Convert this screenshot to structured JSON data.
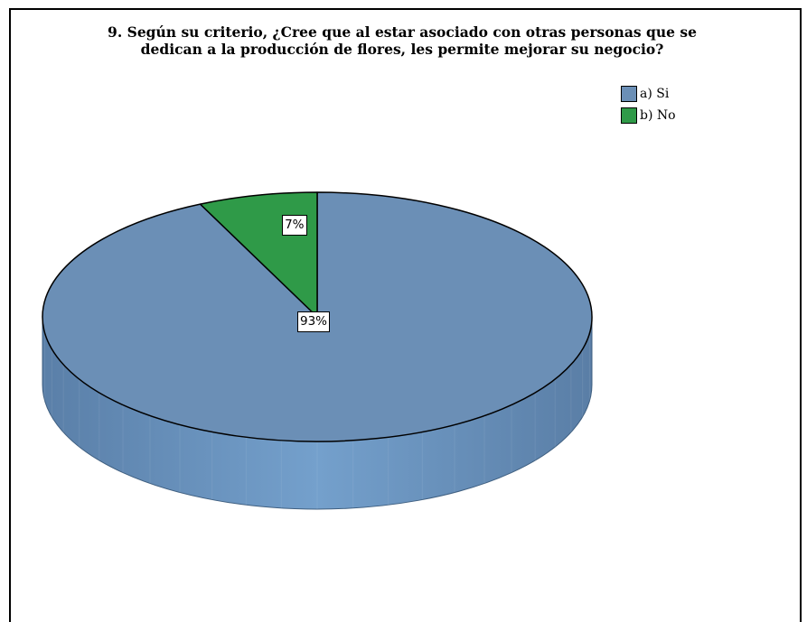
{
  "chart_data": {
    "type": "pie",
    "title_lines": [
      "9. Según su criterio, ¿Cree que al estar asociado con otras personas que se",
      "dedican a la producción de flores, les permite mejorar  su negocio?"
    ],
    "categories": [
      "a) Si",
      "b) No"
    ],
    "values": [
      93,
      7
    ],
    "value_labels": [
      "93%",
      "7%"
    ],
    "colors": [
      "#6b8fb6",
      "#2f9a48"
    ],
    "style": "3d",
    "legend_position": "top-right"
  }
}
